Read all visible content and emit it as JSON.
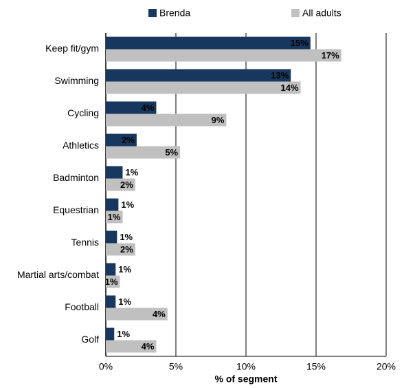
{
  "chart_data": {
    "type": "hbar",
    "xlabel": "% of segment",
    "categories": [
      "Keep fit/gym",
      "Swimming",
      "Cycling",
      "Athletics",
      "Badminton",
      "Equestrian",
      "Tennis",
      "Martial arts/combat",
      "Football",
      "Golf"
    ],
    "series": [
      {
        "name": "Brenda",
        "color": "#17375e",
        "values": [
          14.6,
          13.2,
          3.6,
          2.2,
          1.2,
          0.9,
          0.8,
          0.7,
          0.7,
          0.6
        ],
        "value_labels": [
          "15%",
          "13%",
          "4%",
          "2%",
          "1%",
          "1%",
          "1%",
          "1%",
          "1%",
          "1%"
        ]
      },
      {
        "name": "All adults",
        "color": "#c0c0c0",
        "values": [
          16.8,
          13.9,
          8.6,
          5.3,
          2.1,
          1.2,
          2.1,
          1.0,
          4.4,
          3.6
        ],
        "value_labels": [
          "17%",
          "14%",
          "9%",
          "5%",
          "2%",
          "1%",
          "2%",
          "1%",
          "4%",
          "4%"
        ]
      }
    ],
    "xlim": [
      0,
      20
    ],
    "xticks": [
      {
        "value": 0,
        "label": "0%"
      },
      {
        "value": 5,
        "label": "5%"
      },
      {
        "value": 10,
        "label": "10%"
      },
      {
        "value": 15,
        "label": "15%"
      },
      {
        "value": 20,
        "label": "20%"
      }
    ],
    "grid": true
  }
}
